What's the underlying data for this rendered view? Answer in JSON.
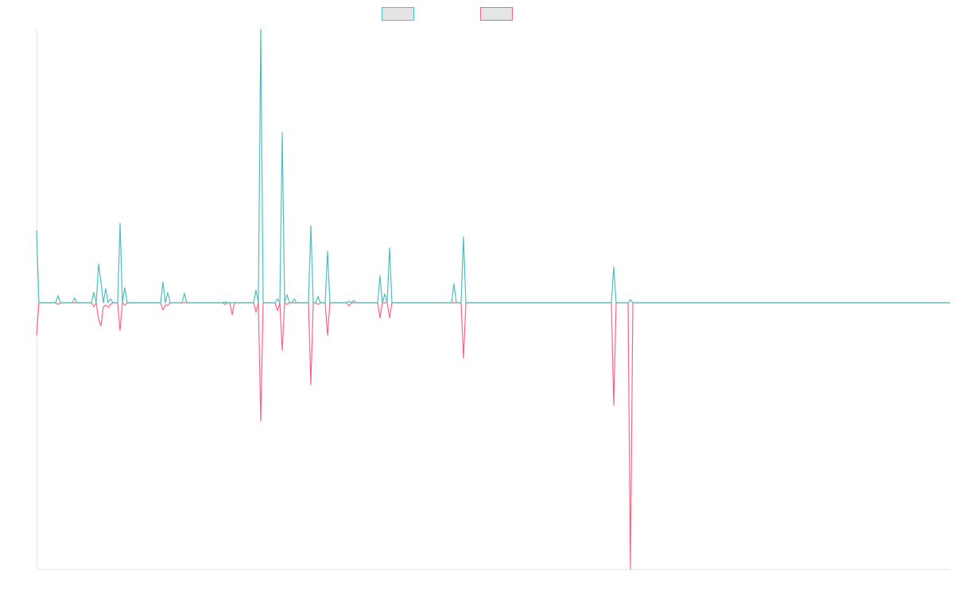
{
  "chart_data": {
    "type": "line",
    "xlim": [
      0,
      383
    ],
    "ylim": [
      -335,
      344
    ],
    "grid": false,
    "x": [
      0,
      1,
      8,
      9,
      10,
      15,
      16,
      17,
      23,
      24,
      25,
      26,
      27,
      28,
      29,
      30,
      31,
      32,
      34,
      35,
      36,
      37,
      38,
      52,
      53,
      54,
      55,
      56,
      61,
      62,
      63,
      78,
      79,
      80,
      81,
      82,
      83,
      91,
      92,
      93,
      94,
      95,
      100,
      101,
      102,
      103,
      104,
      105,
      106,
      107,
      108,
      109,
      114,
      115,
      116,
      117,
      118,
      119,
      121,
      122,
      123,
      130,
      131,
      132,
      133,
      134,
      143,
      144,
      145,
      146,
      147,
      148,
      149,
      174,
      175,
      176,
      178,
      179,
      180,
      241,
      242,
      243,
      248,
      249,
      250,
      383
    ],
    "series": [
      {
        "color": "#4bc0c0",
        "values": [
          91,
          0,
          0,
          9,
          0,
          0,
          6,
          0,
          0,
          13,
          0,
          49,
          26,
          0,
          18,
          0,
          5,
          0,
          0,
          100,
          0,
          19,
          0,
          0,
          26,
          0,
          13,
          0,
          0,
          12,
          0,
          0,
          1,
          0,
          0,
          0,
          0,
          0,
          16,
          0,
          344,
          0,
          0,
          5,
          0,
          214,
          0,
          10,
          0,
          0,
          5,
          0,
          0,
          97,
          0,
          0,
          8,
          0,
          0,
          65,
          0,
          0,
          2,
          0,
          3,
          0,
          0,
          34,
          0,
          11,
          0,
          69,
          0,
          0,
          24,
          0,
          0,
          83,
          0,
          0,
          45,
          0,
          0,
          4,
          0,
          0
        ]
      },
      {
        "color": "#ff6384",
        "values": [
          -41,
          0,
          0,
          -2,
          0,
          0,
          0,
          0,
          0,
          -5,
          0,
          -21,
          -29,
          -5,
          -3,
          -6,
          -2,
          0,
          0,
          -35,
          0,
          -3,
          0,
          0,
          -9,
          -3,
          -3,
          0,
          0,
          0,
          0,
          0,
          -2,
          0,
          0,
          -15,
          0,
          0,
          -12,
          0,
          -149,
          0,
          0,
          -10,
          0,
          -60,
          0,
          -2,
          0,
          0,
          0,
          0,
          0,
          -103,
          0,
          0,
          -2,
          0,
          0,
          -41,
          0,
          0,
          -4,
          0,
          0,
          0,
          0,
          -19,
          0,
          0,
          0,
          -19,
          0,
          0,
          0,
          0,
          0,
          -70,
          0,
          0,
          -129,
          0,
          0,
          -335,
          0,
          0
        ]
      }
    ]
  }
}
